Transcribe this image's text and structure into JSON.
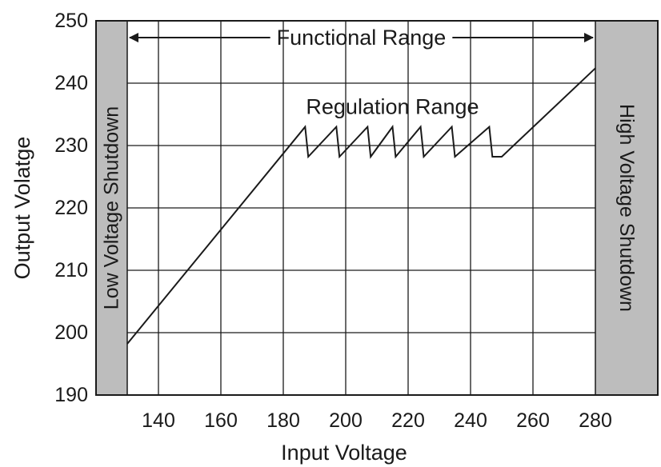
{
  "chart_data": {
    "type": "line",
    "xlabel": "Input Voltage",
    "ylabel": "Output Volatge",
    "xlim": [
      120,
      300
    ],
    "ylim": [
      190,
      250
    ],
    "x_ticks": [
      140,
      160,
      180,
      200,
      220,
      240,
      260,
      280
    ],
    "y_ticks": [
      190,
      200,
      210,
      220,
      230,
      240,
      250
    ],
    "grid": true,
    "series": [
      {
        "points": [
          [
            130,
            198.2
          ],
          [
            187,
            233
          ],
          [
            188,
            228.2
          ],
          [
            197,
            233
          ],
          [
            198,
            228.2
          ],
          [
            207,
            233
          ],
          [
            208,
            228.2
          ],
          [
            215,
            233
          ],
          [
            216,
            228.2
          ],
          [
            224,
            233
          ],
          [
            225,
            228.2
          ],
          [
            234,
            233
          ],
          [
            235,
            228.2
          ],
          [
            246,
            233
          ],
          [
            247,
            228.2
          ],
          [
            250,
            228.2
          ],
          [
            280,
            242.4
          ]
        ]
      }
    ],
    "shaded_regions": [
      {
        "label": "Low Voltage Shutdown",
        "x_range": [
          120,
          130
        ],
        "color": "#bdbdbd"
      },
      {
        "label": "High Voltage Shutdown",
        "x_range": [
          280,
          300
        ],
        "color": "#bdbdbd"
      }
    ],
    "annotations": [
      {
        "text": "Functional Range",
        "type": "double-arrow",
        "x_range": [
          130,
          280
        ],
        "y": 247.3
      },
      {
        "text": "Regulation Range",
        "x": 215,
        "y": 236.2
      }
    ]
  }
}
